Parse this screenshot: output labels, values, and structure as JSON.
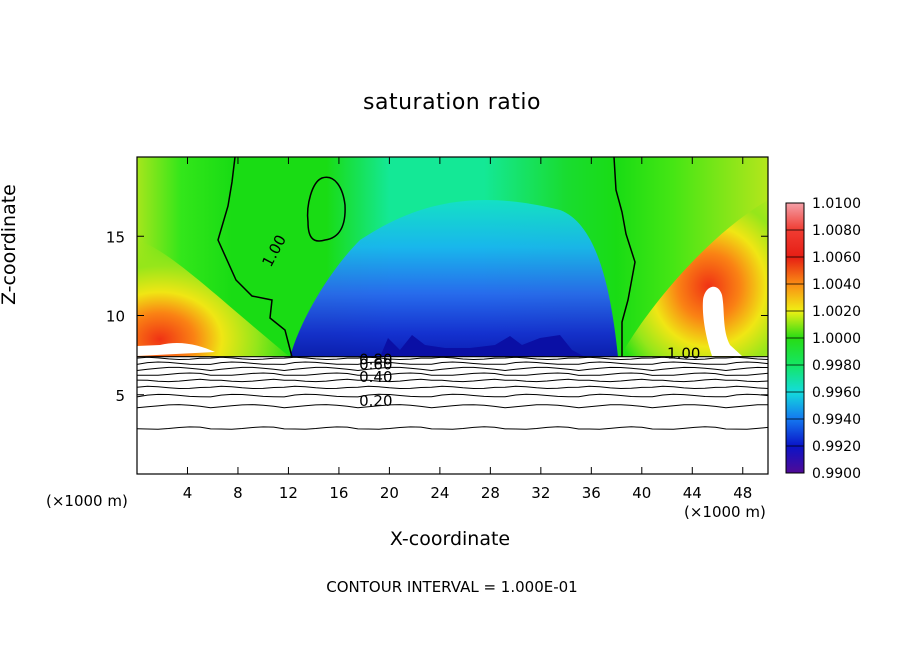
{
  "chart_data": {
    "type": "heatmap",
    "title": "saturation ratio",
    "xlabel": "X-coordinate",
    "ylabel": "Z-coordinate",
    "x_unit_label": "(×1000 m)",
    "y_unit_label": "(×1000 m)",
    "xlim": [
      0,
      50
    ],
    "ylim": [
      0,
      20
    ],
    "x_ticks": [
      4,
      8,
      12,
      16,
      20,
      24,
      28,
      32,
      36,
      40,
      44,
      48
    ],
    "y_ticks": [
      5,
      10,
      15
    ],
    "colorbar": {
      "min": 0.99,
      "max": 1.01,
      "labels": [
        "1.0100",
        "1.0080",
        "1.0060",
        "1.0040",
        "1.0020",
        "1.0000",
        "0.9980",
        "0.9960",
        "0.9940",
        "0.9920",
        "0.9900"
      ]
    },
    "contour_labels": [
      {
        "text": "1.00",
        "x": 10.6,
        "z": 13.0
      },
      {
        "text": "1.00",
        "x": 42.0,
        "z": 7.3
      },
      {
        "text": "0.80",
        "x": 17.6,
        "z": 6.9
      },
      {
        "text": "0.60",
        "x": 17.6,
        "z": 6.6
      },
      {
        "text": "0.40",
        "x": 17.6,
        "z": 5.8
      },
      {
        "text": "0.20",
        "x": 17.6,
        "z": 4.3
      }
    ],
    "contour_levels_lower": [
      0.1,
      0.2,
      0.3,
      0.4,
      0.5,
      0.6,
      0.7,
      0.8,
      0.9
    ],
    "contour_interval_text": "CONTOUR INTERVAL = 1.000E-01"
  }
}
